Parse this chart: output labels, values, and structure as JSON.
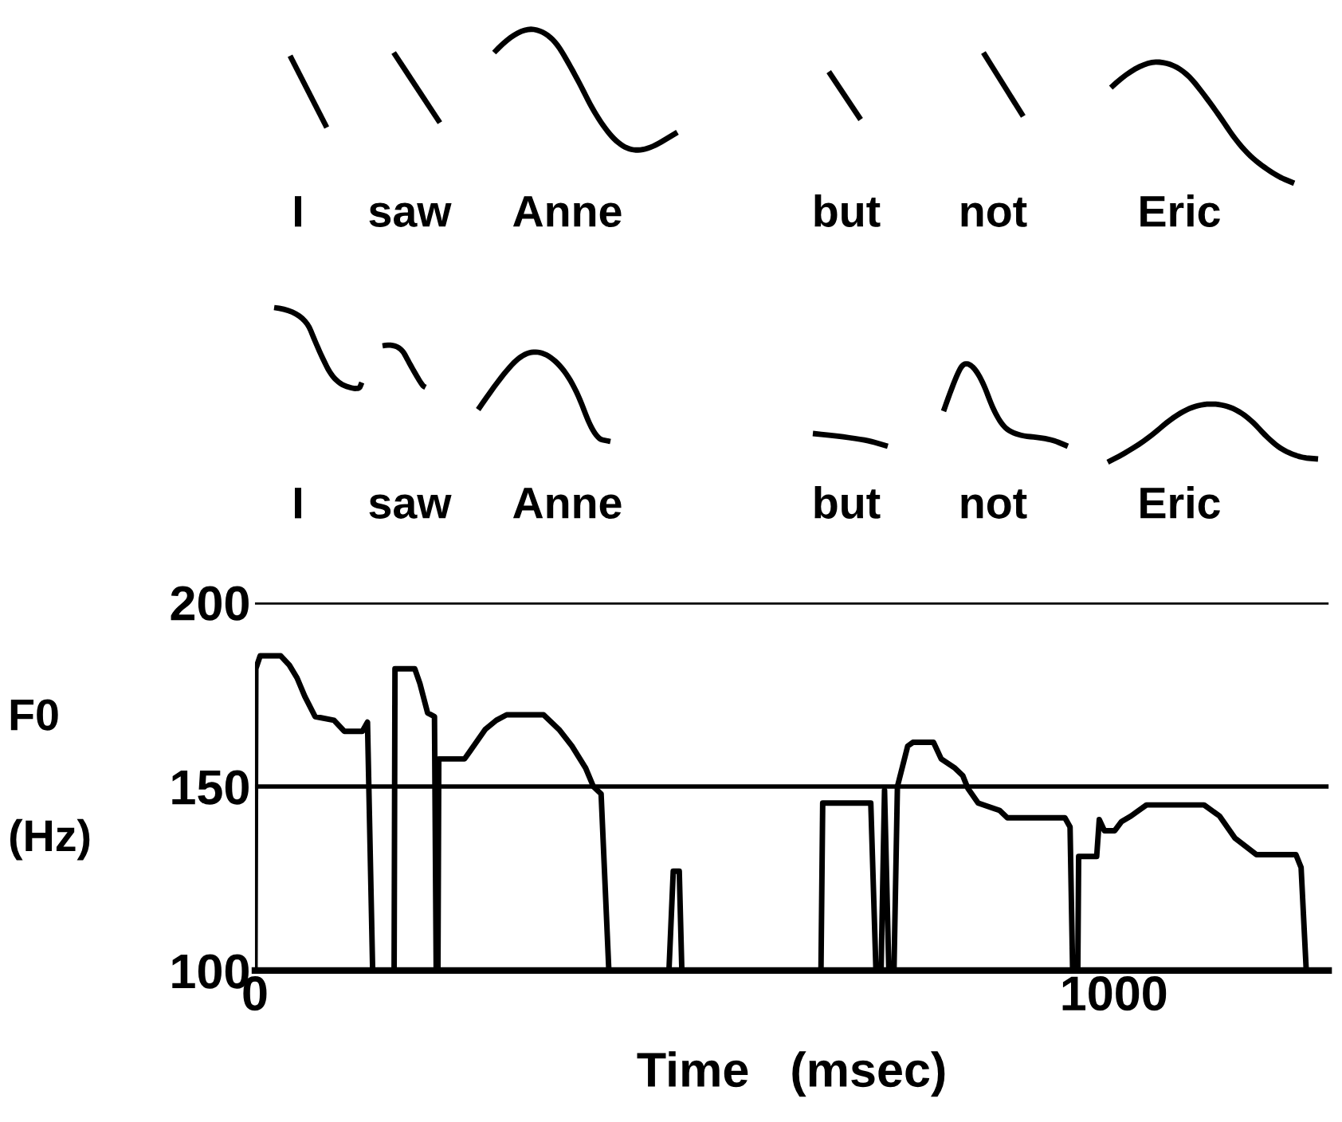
{
  "chart_data": {
    "type": "line",
    "xlabel": "Time   (msec)",
    "ylabel": "F0\n\n(Hz)",
    "annotations": [
      "I",
      "saw",
      "Anne",
      "but",
      "not",
      "Eric",
      "I",
      "saw",
      "Anne",
      "but",
      "not",
      "Eric"
    ],
    "xlim": [
      0,
      1250
    ],
    "ylim": [
      100,
      200
    ],
    "xticks": [
      0,
      1000
    ],
    "yticks": [
      100,
      150,
      200
    ],
    "grid": "y",
    "series": [
      {
        "color": "#000000",
        "x": [
          0,
          1,
          6,
          30,
          40,
          49,
          58,
          70,
          92,
          104,
          125,
          131,
          137,
          162,
          163,
          186,
          192,
          201,
          209,
          211,
          213,
          214,
          244,
          250,
          268,
          281,
          293,
          336,
          354,
          369,
          385,
          394,
          403,
          412,
          482,
          487,
          494,
          497,
          659,
          661,
          717,
          723,
          729,
          733,
          738,
          744,
          748,
          760,
          766,
          790,
          799,
          815,
          824,
          830,
          842,
          867,
          876,
          943,
          949,
          952,
          958,
          959,
          980,
          983,
          989,
          1001,
          1009,
          1020,
          1038,
          1105,
          1123,
          1141,
          1166,
          1212,
          1218,
          1224
        ],
        "values": [
          100,
          182,
          185.5,
          185.5,
          183,
          179.5,
          174.5,
          169,
          168,
          165,
          165,
          167.5,
          100,
          100,
          182,
          182,
          178,
          170,
          169,
          100,
          100,
          157.5,
          157.5,
          159.5,
          165.5,
          168,
          169.5,
          169.5,
          165.5,
          161,
          155,
          150,
          148,
          100,
          100,
          127,
          127,
          100,
          100,
          145.5,
          145.5,
          100,
          100,
          149,
          100,
          100,
          150,
          161,
          162,
          162,
          157.5,
          155,
          153,
          149.5,
          145.5,
          143.5,
          141.5,
          141.5,
          139,
          100,
          100,
          131,
          131,
          141,
          138,
          138,
          140.5,
          142,
          145,
          145,
          142,
          136,
          131.5,
          131.5,
          128,
          100
        ]
      }
    ]
  }
}
